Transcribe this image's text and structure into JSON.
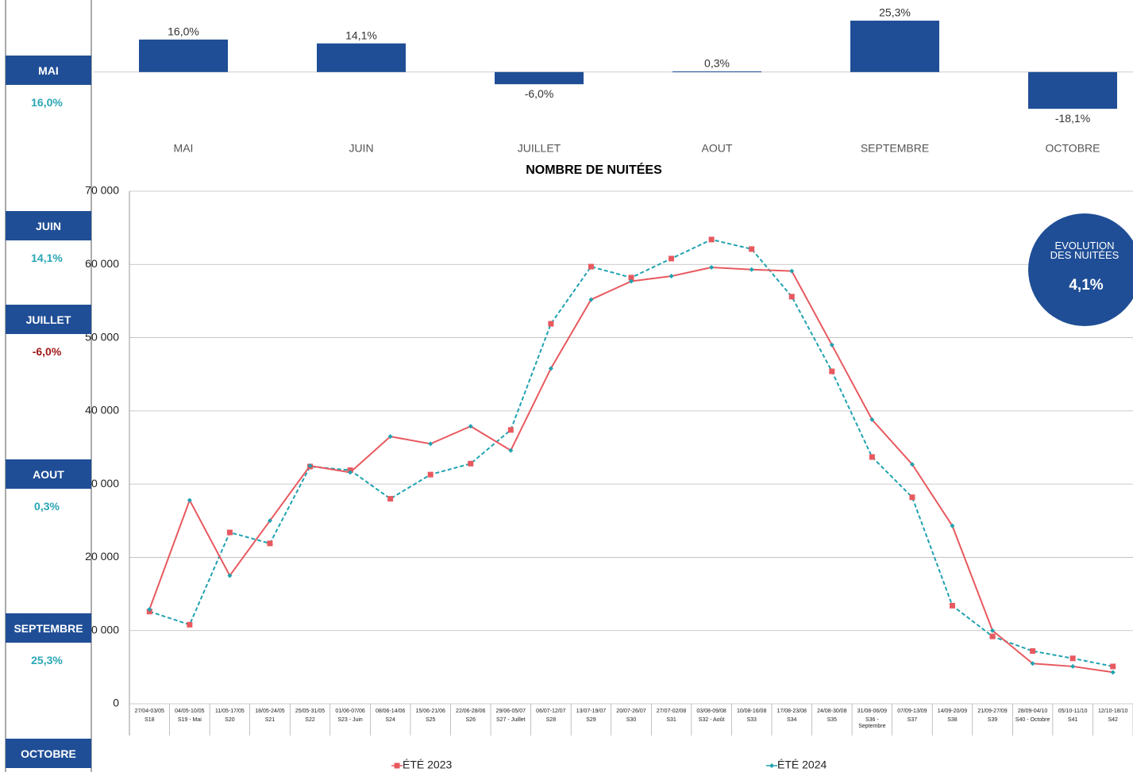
{
  "sidebar": [
    {
      "month": "MAI",
      "value": "16,0%",
      "color": "#2aa6b5"
    },
    {
      "month": "JUIN",
      "value": "14,1%",
      "color": "#2aa6b5"
    },
    {
      "month": "JUILLET",
      "value": "-6,0%",
      "color": "#a01818"
    },
    {
      "month": "AOUT",
      "value": "0,3%",
      "color": "#2aa6b5"
    },
    {
      "month": "SEPTEMBRE",
      "value": "25,3%",
      "color": "#2aa6b5"
    },
    {
      "month": "OCTOBRE"
    }
  ],
  "kpi": {
    "label": "ÉVOLUTION DES NUITÉES",
    "value": "4,1%"
  },
  "chart_data": [
    {
      "type": "bar",
      "categories": [
        "MAI",
        "JUIN",
        "JUILLET",
        "AOUT",
        "SEPTEMBRE",
        "OCTOBRE"
      ],
      "values": [
        16.0,
        14.1,
        -6.0,
        0.3,
        25.3,
        -18.1
      ],
      "value_labels": [
        "16,0%",
        "14,1%",
        "-6,0%",
        "0,3%",
        "25,3%",
        "-18,1%"
      ],
      "color": "#1f4e96",
      "ylim": [
        -20,
        30
      ]
    },
    {
      "type": "line",
      "title": "NOMBRE DE NUITÉES",
      "categories": [
        "27/04-03/05",
        "04/05-10/05",
        "11/05-17/05",
        "18/05-24/05",
        "25/05-31/05",
        "01/06-07/06",
        "08/06-14/06",
        "15/06-21/06",
        "22/06-28/06",
        "29/06-05/07",
        "06/07-12/07",
        "13/07-19/07",
        "20/07-26/07",
        "27/07-02/08",
        "03/08-09/08",
        "10/08-16/08",
        "17/08-23/08",
        "24/08-30/08",
        "31/08-06/09",
        "07/09-13/09",
        "14/09-20/09",
        "21/09-27/09",
        "28/09-04/10",
        "05/10-11/10",
        "12/10-18/10"
      ],
      "weeks": [
        "S18",
        "S19 - Mai",
        "S20",
        "S21",
        "S22",
        "S23 - Juin",
        "S24",
        "S25",
        "S26",
        "S27 - Juillet",
        "S28",
        "S29",
        "S30",
        "S31",
        "S32 - Août",
        "S33",
        "S34",
        "S35",
        "S36 - Septembre",
        "S37",
        "S38",
        "S39",
        "S40 - Octobre",
        "S41",
        "S42"
      ],
      "series": [
        {
          "name": "ÉTÉ 2023",
          "color": "#e8595f",
          "line_color": "#1fa2b0",
          "dashed": true,
          "marker": "square",
          "values": [
            12600,
            10800,
            23400,
            21900,
            32400,
            31900,
            28000,
            31300,
            32800,
            37400,
            51900,
            59700,
            58200,
            60800,
            63400,
            62100,
            55600,
            45400,
            33700,
            28200,
            13400,
            9200,
            7200,
            6200,
            5100
          ]
        },
        {
          "name": "ÉTÉ 2024",
          "color": "#1fa2b0",
          "line_color": "#e8595f",
          "dashed": false,
          "marker": "diamond",
          "values": [
            12900,
            27800,
            17500,
            25000,
            32500,
            31600,
            36500,
            35500,
            37900,
            34600,
            45800,
            55200,
            57700,
            58400,
            59600,
            59300,
            59100,
            49000,
            38800,
            32700,
            24300,
            10000,
            5500,
            5100,
            4300
          ]
        }
      ],
      "ylim": [
        0,
        70000
      ],
      "yticks": [
        0,
        {
          "value": 10000,
          "label": "10 000"
        },
        {
          "value": 20000,
          "label": "20 000"
        },
        {
          "value": 30000,
          "label": "30 000"
        },
        {
          "value": 40000,
          "label": "40 000"
        },
        {
          "value": 50000,
          "label": "50 000"
        },
        {
          "value": 60000,
          "label": "60 000"
        },
        {
          "value": 70000,
          "label": "70 000"
        }
      ],
      "grid": true
    }
  ]
}
